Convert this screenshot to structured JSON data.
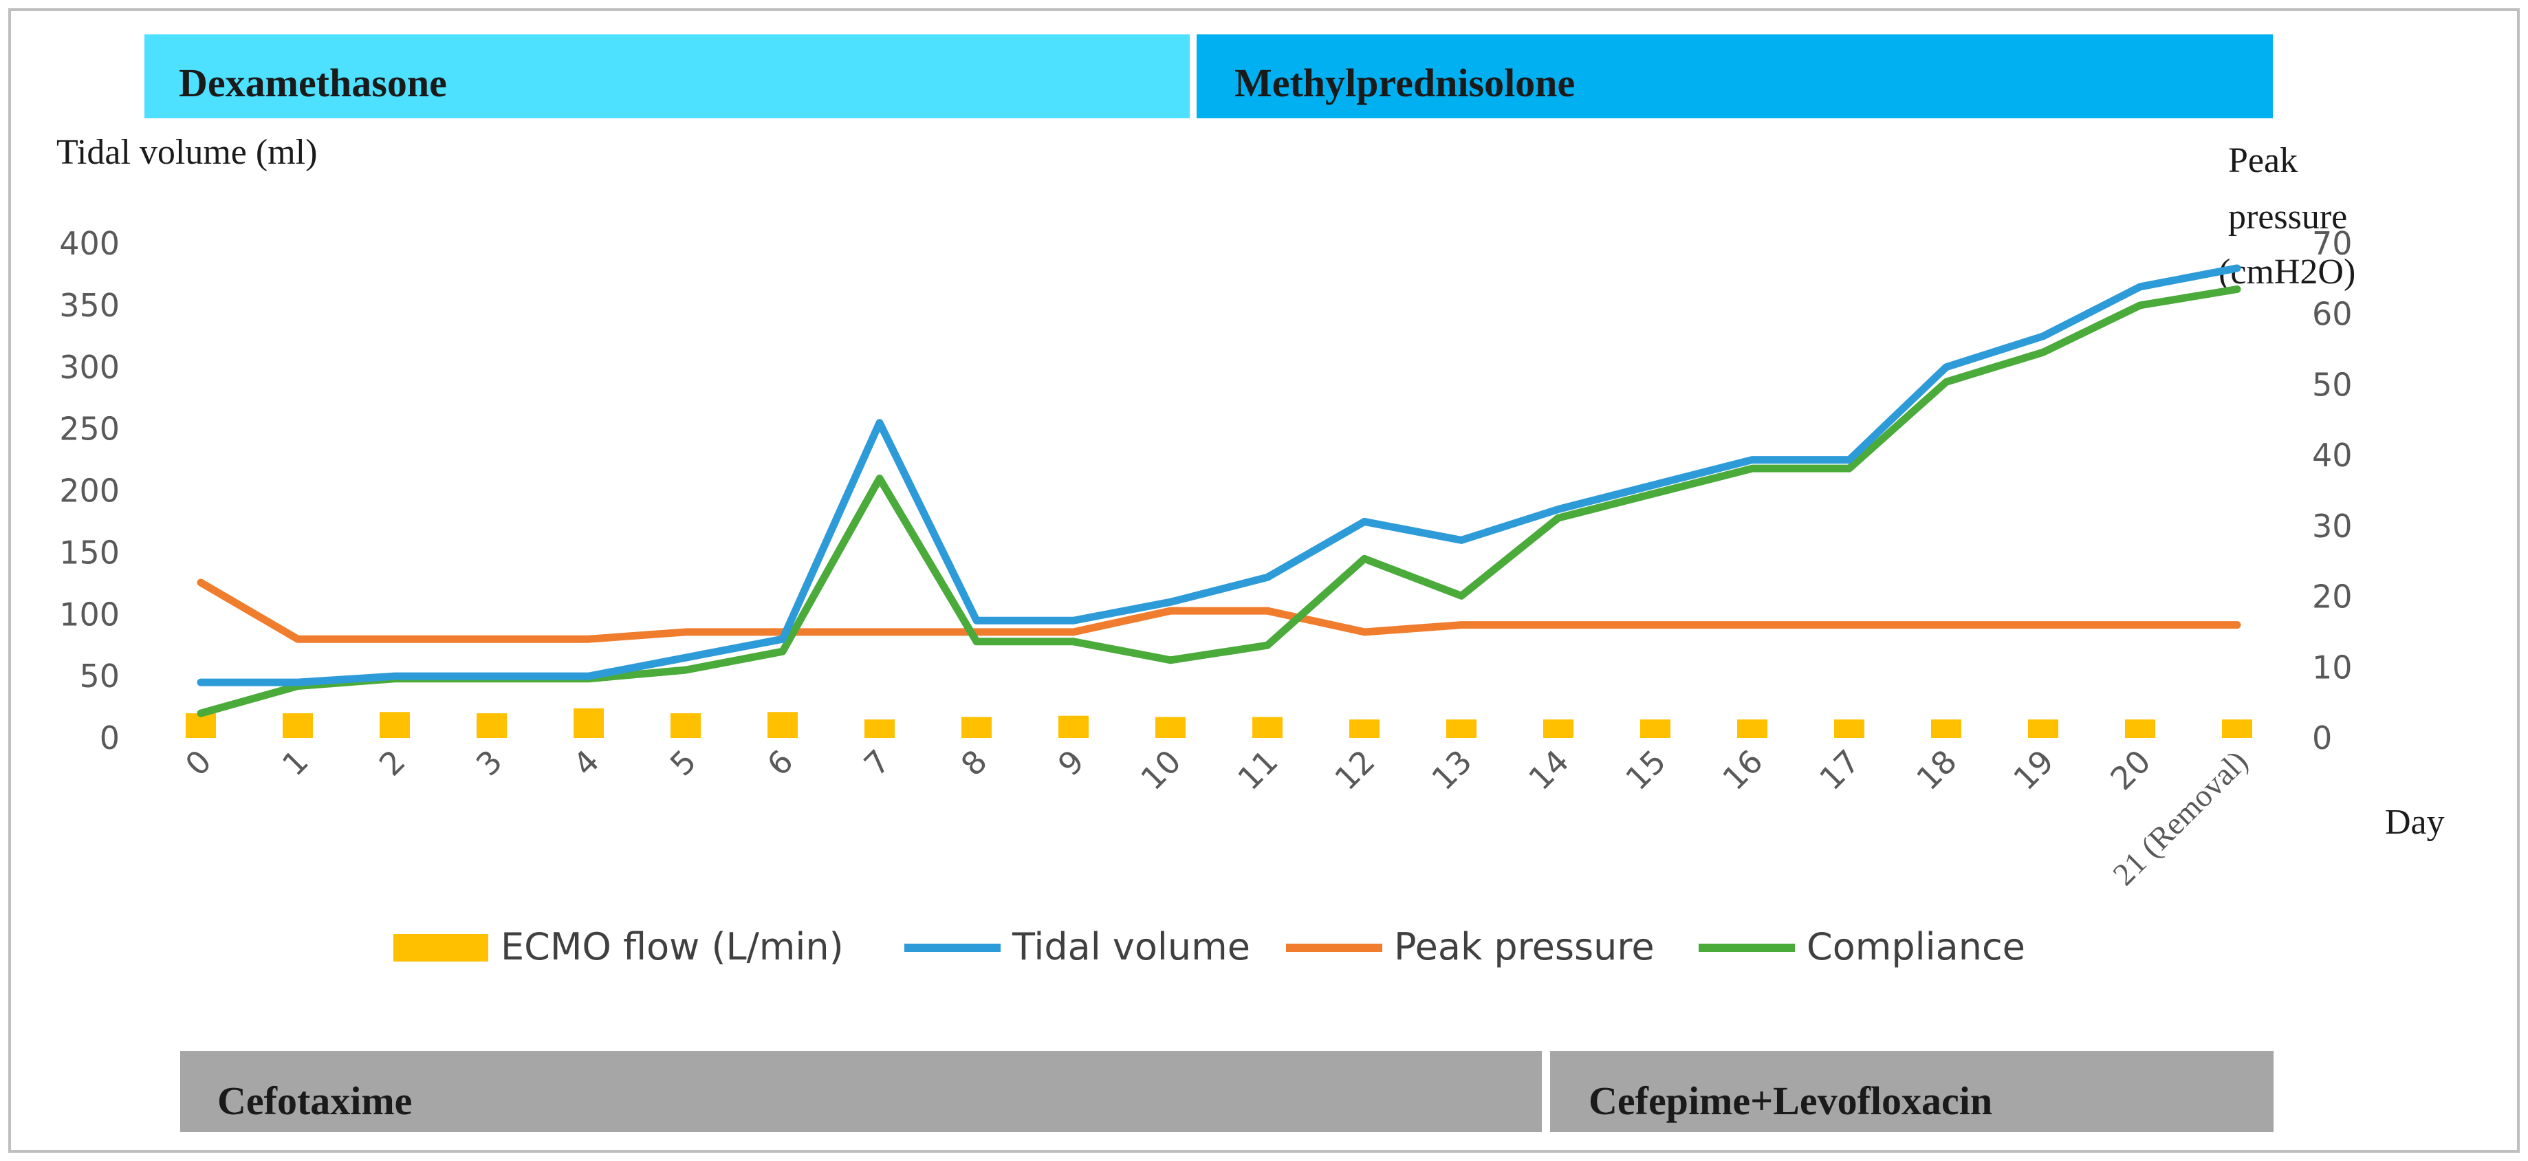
{
  "banners": {
    "dexamethasone": "Dexamethasone",
    "methylprednisolone": "Methylprednisolone",
    "cefotaxime": "Cefotaxime",
    "cefepime_levofloxacin": "Cefepime+Levofloxacin"
  },
  "colors": {
    "dexamethasone_bar": "#4de1ff",
    "methylprednisolone_bar": "#00b0f0",
    "antibiotic_bar": "#a6a6a6",
    "ecmo": "#ffc000",
    "tidal": "#2e9bd9",
    "peak": "#f07c2d",
    "compliance": "#4aaa3a"
  },
  "chart_data": {
    "type": "line",
    "xlabel": "Day",
    "ylabel": "Tidal volume (ml)",
    "y2label_line1": "Peak",
    "y2label_line2": "pressure",
    "y2label_line3": "(cmH2O)",
    "categories": [
      "0",
      "1",
      "2",
      "3",
      "4",
      "5",
      "6",
      "7",
      "8",
      "9",
      "10",
      "11",
      "12",
      "13",
      "14",
      "15",
      "16",
      "17",
      "18",
      "19",
      "20",
      "21 (Removal)"
    ],
    "ylim": [
      0,
      400
    ],
    "y_ticks": [
      "0",
      "50",
      "100",
      "150",
      "200",
      "250",
      "300",
      "350",
      "400"
    ],
    "y2lim": [
      0,
      70
    ],
    "y2_ticks": [
      "0",
      "10",
      "20",
      "30",
      "40",
      "50",
      "60",
      "70"
    ],
    "series": [
      {
        "name": "ECMO flow (L/min)",
        "type": "bar",
        "axis": "left",
        "values": [
          20,
          20,
          21,
          20,
          24,
          20,
          21,
          15,
          17,
          18,
          17,
          17,
          15,
          15,
          15,
          15,
          15,
          15,
          15,
          15,
          15,
          15
        ]
      },
      {
        "name": "Tidal volume",
        "type": "line",
        "axis": "left",
        "values": [
          45,
          45,
          50,
          50,
          50,
          65,
          80,
          255,
          95,
          95,
          110,
          130,
          175,
          160,
          185,
          205,
          225,
          225,
          300,
          325,
          365,
          380
        ]
      },
      {
        "name": "Peak pressure",
        "type": "line",
        "axis": "right",
        "values": [
          22,
          14,
          14,
          14,
          14,
          15,
          15,
          15,
          15,
          15,
          18,
          18,
          15,
          16,
          16,
          16,
          16,
          16,
          16,
          16,
          16,
          16
        ]
      },
      {
        "name": "Compliance",
        "type": "line",
        "axis": "left",
        "values": [
          20,
          42,
          48,
          48,
          48,
          55,
          70,
          210,
          78,
          78,
          63,
          75,
          145,
          115,
          178,
          198,
          218,
          218,
          288,
          312,
          350,
          363
        ]
      }
    ]
  }
}
